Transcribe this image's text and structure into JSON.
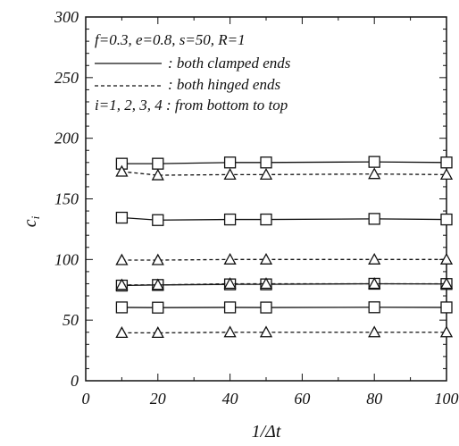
{
  "chart_data": {
    "type": "line",
    "xlabel": "1/Δt",
    "ylabel": "c_i",
    "xlim": [
      0,
      100
    ],
    "ylim": [
      0,
      300
    ],
    "x_ticks": [
      0,
      20,
      40,
      60,
      80,
      100
    ],
    "y_ticks": [
      0,
      50,
      100,
      150,
      200,
      250,
      300
    ],
    "grid": false,
    "legend_placement": "top-left",
    "annotations": [
      "f=0.3, e=0.8, s=50, R=1",
      "i=1, 2, 3, 4 : from bottom to top"
    ],
    "legend": [
      {
        "text": ": both clamped ends",
        "style": "solid",
        "marker": "square"
      },
      {
        "text": ": both hinged ends",
        "style": "dashed",
        "marker": "triangle"
      }
    ],
    "x": [
      10,
      20,
      40,
      50,
      80,
      100
    ],
    "series": [
      {
        "style": "solid",
        "marker": "square",
        "values": [
          60.5,
          60.3,
          60.5,
          60.4,
          60.6,
          60.5
        ]
      },
      {
        "style": "solid",
        "marker": "square",
        "values": [
          78.5,
          79.0,
          79.5,
          79.5,
          80.0,
          79.8
        ]
      },
      {
        "style": "solid",
        "marker": "square",
        "values": [
          134.5,
          132.5,
          133.0,
          133.0,
          133.5,
          133.0
        ]
      },
      {
        "style": "solid",
        "marker": "square",
        "values": [
          179.0,
          179.0,
          180.0,
          180.0,
          180.5,
          180.0
        ]
      },
      {
        "style": "dashed",
        "marker": "triangle",
        "values": [
          39.5,
          39.5,
          40.0,
          40.0,
          40.0,
          40.0
        ]
      },
      {
        "style": "dashed",
        "marker": "triangle",
        "values": [
          79.0,
          79.0,
          80.0,
          80.0,
          80.0,
          80.0
        ]
      },
      {
        "style": "dashed",
        "marker": "triangle",
        "values": [
          99.5,
          99.5,
          100.0,
          100.0,
          100.0,
          100.0
        ]
      },
      {
        "style": "dashed",
        "marker": "triangle",
        "values": [
          172.5,
          169.5,
          170.0,
          170.0,
          170.5,
          170.0
        ]
      }
    ]
  }
}
